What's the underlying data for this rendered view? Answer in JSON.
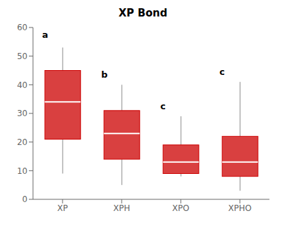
{
  "chart_data": {
    "type": "box",
    "title": "XP Bond",
    "categories": [
      "XP",
      "XPH",
      "XPO",
      "XPHO"
    ],
    "boxes": [
      {
        "whislo": 9,
        "q1": 21,
        "med": 34,
        "q3": 45,
        "whishi": 53
      },
      {
        "whislo": 5,
        "q1": 14,
        "med": 23,
        "q3": 31,
        "whishi": 40
      },
      {
        "whislo": 8,
        "q1": 9,
        "med": 13,
        "q3": 19,
        "whishi": 29
      },
      {
        "whislo": 3,
        "q1": 8,
        "med": 13,
        "q3": 22,
        "whishi": 41
      }
    ],
    "annotations": [
      {
        "text": "a",
        "x": "XP",
        "y": 56
      },
      {
        "text": "b",
        "x": "XPH",
        "y": 42
      },
      {
        "text": "c",
        "x": "XPO",
        "y": 31
      },
      {
        "text": "c",
        "x": "XPHO",
        "y": 43
      }
    ],
    "color": "#cc0000",
    "ylim": [
      0,
      60
    ],
    "yticks": [
      0,
      10,
      20,
      30,
      40,
      50,
      60
    ],
    "grid": false
  }
}
